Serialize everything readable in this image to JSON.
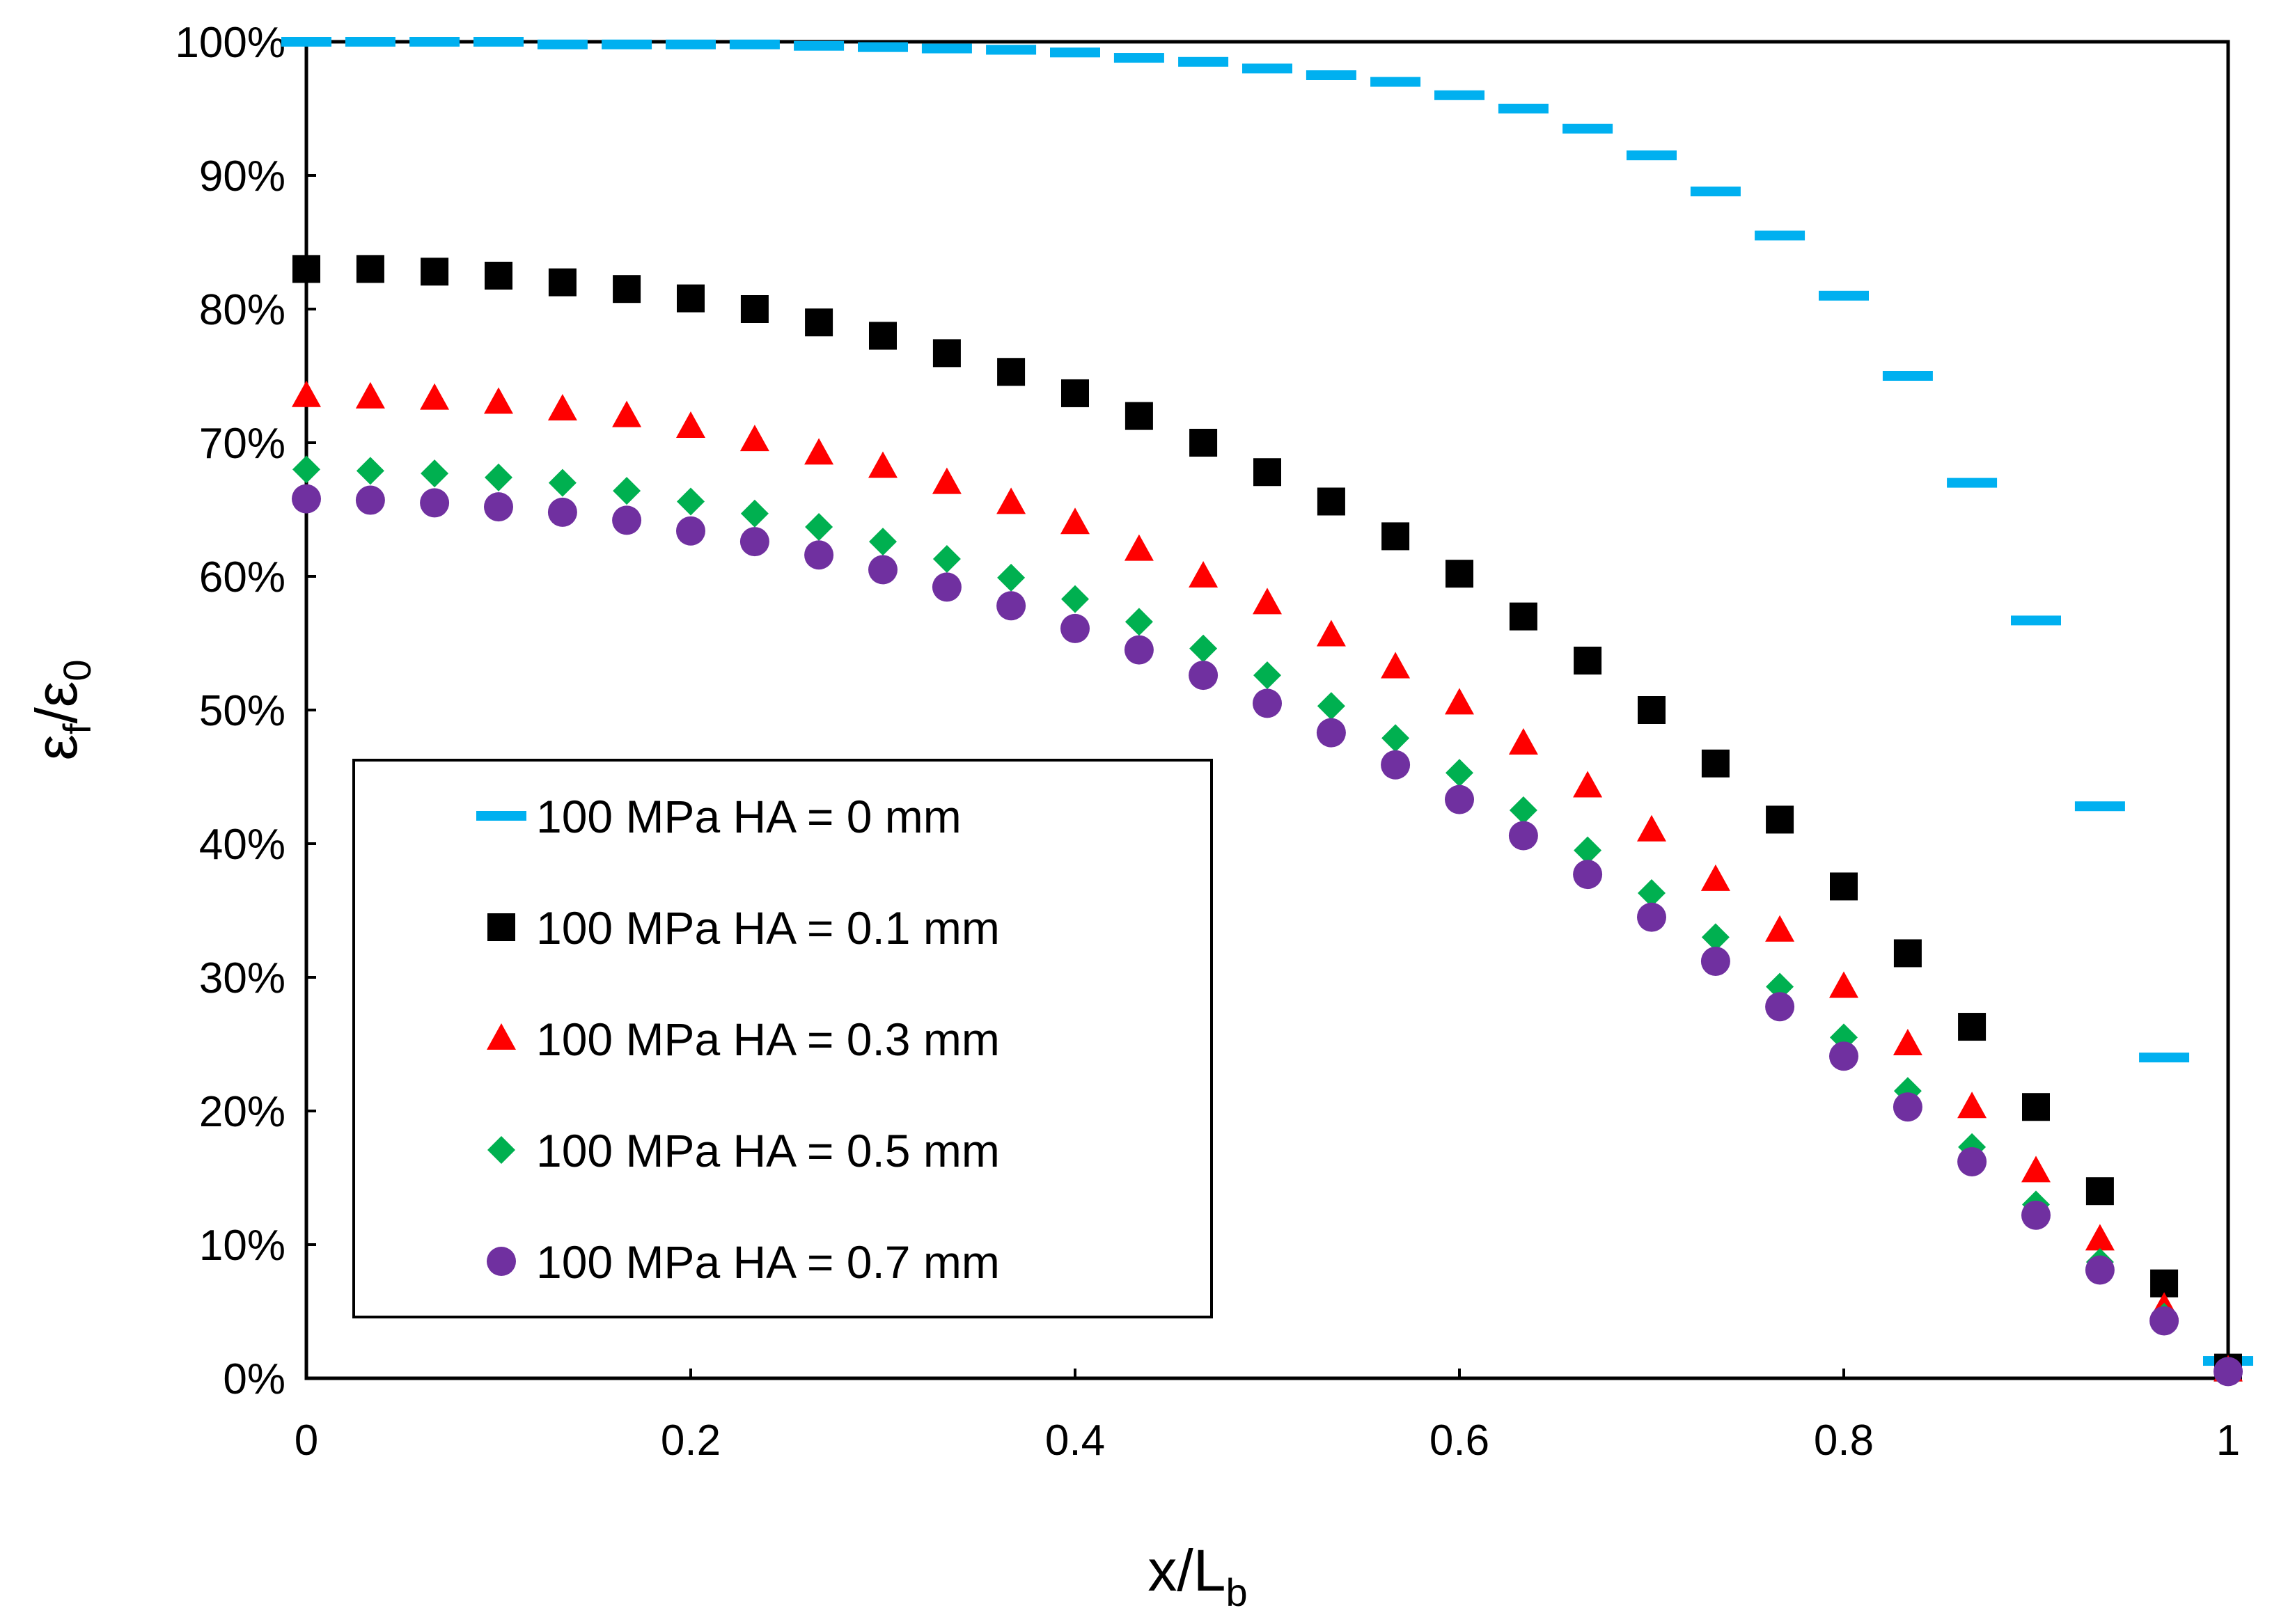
{
  "chart_data": {
    "type": "scatter",
    "title": "",
    "xlabel": {
      "main": "x/L",
      "sub": "b"
    },
    "ylabel": {
      "main1": "ε",
      "sub1": "f",
      "sep": "/ε",
      "sub2": "0"
    },
    "xlim": [
      0,
      1
    ],
    "ylim": [
      0,
      1
    ],
    "x_ticks": [
      {
        "value": 0,
        "label": "0"
      },
      {
        "value": 0.2,
        "label": "0.2"
      },
      {
        "value": 0.4,
        "label": "0.4"
      },
      {
        "value": 0.6,
        "label": "0.6"
      },
      {
        "value": 0.8,
        "label": "0.8"
      },
      {
        "value": 1,
        "label": "1"
      }
    ],
    "y_ticks": [
      {
        "value": 0,
        "label": "0%"
      },
      {
        "value": 0.1,
        "label": "10%"
      },
      {
        "value": 0.2,
        "label": "20%"
      },
      {
        "value": 0.3,
        "label": "30%"
      },
      {
        "value": 0.4,
        "label": "40%"
      },
      {
        "value": 0.5,
        "label": "50%"
      },
      {
        "value": 0.6,
        "label": "60%"
      },
      {
        "value": 0.7,
        "label": "70%"
      },
      {
        "value": 0.8,
        "label": "80%"
      },
      {
        "value": 0.9,
        "label": "90%"
      },
      {
        "value": 1,
        "label": "100%"
      }
    ],
    "grid": false,
    "legend_position": "lower-left",
    "x": [
      0,
      0.0333,
      0.0667,
      0.1,
      0.1333,
      0.1667,
      0.2,
      0.2333,
      0.2667,
      0.3,
      0.3333,
      0.3667,
      0.4,
      0.4333,
      0.4667,
      0.5,
      0.5333,
      0.5667,
      0.6,
      0.6333,
      0.6667,
      0.7,
      0.7333,
      0.7667,
      0.8,
      0.8333,
      0.8667,
      0.9,
      0.9333,
      0.9667,
      1
    ],
    "series": [
      {
        "name": "100 MPa HA = 0 mm",
        "marker": "dash",
        "color": "#00B0F0",
        "values": [
          1.0,
          1.0,
          1.0,
          1.0,
          0.998,
          0.998,
          0.998,
          0.998,
          0.997,
          0.996,
          0.995,
          0.994,
          0.992,
          0.988,
          0.985,
          0.98,
          0.975,
          0.97,
          0.96,
          0.95,
          0.935,
          0.915,
          0.888,
          0.855,
          0.81,
          0.75,
          0.67,
          0.567,
          0.428,
          0.24,
          0.013
        ]
      },
      {
        "name": "100 MPa HA = 0.1 mm",
        "marker": "square",
        "color": "#000000",
        "values": [
          0.83,
          0.83,
          0.828,
          0.825,
          0.82,
          0.815,
          0.808,
          0.8,
          0.79,
          0.78,
          0.767,
          0.753,
          0.737,
          0.72,
          0.7,
          0.678,
          0.656,
          0.63,
          0.602,
          0.57,
          0.537,
          0.5,
          0.46,
          0.418,
          0.368,
          0.318,
          0.263,
          0.203,
          0.14,
          0.071,
          0.008
        ]
      },
      {
        "name": "100 MPa HA = 0.3 mm",
        "marker": "triangle",
        "color": "#FF0000",
        "values": [
          0.735,
          0.734,
          0.733,
          0.73,
          0.725,
          0.72,
          0.712,
          0.702,
          0.692,
          0.682,
          0.67,
          0.655,
          0.64,
          0.62,
          0.6,
          0.58,
          0.556,
          0.532,
          0.505,
          0.475,
          0.443,
          0.41,
          0.373,
          0.335,
          0.293,
          0.25,
          0.203,
          0.155,
          0.104,
          0.053,
          0.006
        ]
      },
      {
        "name": "100 MPa HA = 0.5 mm",
        "marker": "diamond",
        "color": "#00B050",
        "values": [
          0.68,
          0.679,
          0.677,
          0.674,
          0.67,
          0.664,
          0.656,
          0.647,
          0.637,
          0.626,
          0.613,
          0.599,
          0.583,
          0.566,
          0.546,
          0.526,
          0.503,
          0.479,
          0.453,
          0.425,
          0.395,
          0.363,
          0.33,
          0.293,
          0.255,
          0.215,
          0.173,
          0.13,
          0.087,
          0.046,
          0.005
        ]
      },
      {
        "name": "100 MPa HA = 0.7 mm",
        "marker": "circle",
        "color": "#7030A0",
        "values": [
          0.658,
          0.657,
          0.655,
          0.652,
          0.648,
          0.642,
          0.634,
          0.626,
          0.616,
          0.605,
          0.592,
          0.578,
          0.561,
          0.545,
          0.526,
          0.505,
          0.483,
          0.459,
          0.433,
          0.406,
          0.377,
          0.345,
          0.312,
          0.278,
          0.241,
          0.203,
          0.162,
          0.122,
          0.081,
          0.043,
          0.005
        ]
      }
    ]
  }
}
